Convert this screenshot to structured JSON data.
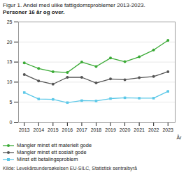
{
  "chart_data": {
    "type": "line",
    "title": "Figur 1. Andel med ulike fattigdomsproblemer 2013-2023.",
    "subtitle": "Personer 16 år og over.",
    "x_label": "År",
    "source": "Kilde: Levekårsundersøkelsen EU-SILC, Statistisk sentralbyrå",
    "x": [
      2013,
      2014,
      2015,
      2016,
      2017,
      2018,
      2019,
      2020,
      2021,
      2022,
      2023
    ],
    "series": [
      {
        "name": "Mangler minst ett materielt gode",
        "color": "#3aaa35",
        "marker": "circle",
        "values": [
          14.8,
          13.4,
          12.6,
          12.4,
          15.0,
          13.9,
          16.0,
          15.1,
          16.3,
          18.0,
          20.4
        ]
      },
      {
        "name": "Mangler minst ett sosialt gode",
        "color": "#555555",
        "marker": "circle",
        "values": [
          11.9,
          10.3,
          9.5,
          11.2,
          11.2,
          9.8,
          10.8,
          10.6,
          11.1,
          11.4,
          12.6
        ]
      },
      {
        "name": "Minst ett betalingsproblem",
        "color": "#5bc8e8",
        "marker": "square",
        "values": [
          7.4,
          5.8,
          5.7,
          4.9,
          5.4,
          5.3,
          5.9,
          6.1,
          6.0,
          6.0,
          7.7
        ]
      }
    ],
    "xlim": [
      2012.6,
      2023.5
    ],
    "xticks": [
      2013,
      2014,
      2015,
      2016,
      2017,
      2018,
      2019,
      2020,
      2021,
      2022,
      2023
    ],
    "ylim": [
      0,
      25
    ],
    "yticks": [
      0,
      5,
      10,
      15,
      20,
      25
    ],
    "grid": true,
    "legend": "bottom"
  }
}
